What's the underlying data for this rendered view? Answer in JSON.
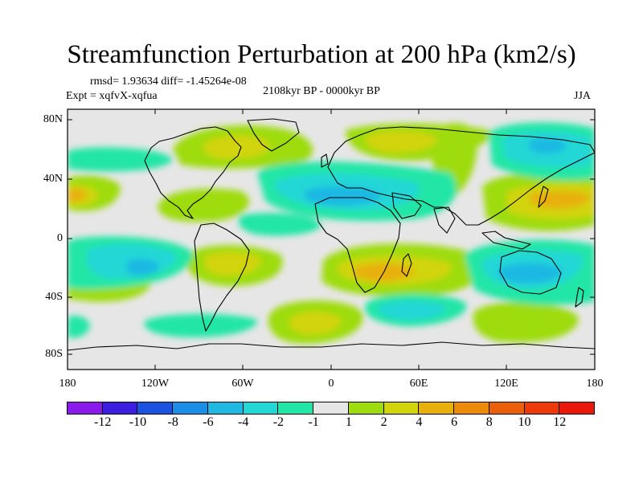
{
  "title": "Streamfunction Perturbation at 200 hPa (km2/s)",
  "stats": "rmsd= 1.93634 diff= -1.45264e-08",
  "expt": "Expt = xqfvX-xqfua",
  "period": "2108kyr BP - 0000kyr BP",
  "season": "JJA",
  "lat_labels": [
    "80N",
    "40N",
    "0",
    "40S",
    "80S"
  ],
  "lon_labels": [
    "180",
    "120W",
    "60W",
    "0",
    "60E",
    "120E",
    "180"
  ],
  "colorbar": {
    "labels": [
      "-12",
      "-10",
      "-8",
      "-6",
      "-4",
      "-2",
      "-1",
      "1",
      "2",
      "4",
      "6",
      "8",
      "10",
      "12"
    ],
    "colors": [
      "#8a1bea",
      "#3b1ee0",
      "#1b52e0",
      "#1c8ee6",
      "#1fb8e3",
      "#22d7d6",
      "#22e6a6",
      "#e6e6e6",
      "#9edc10",
      "#d2d40c",
      "#e8b00a",
      "#ec8a0a",
      "#ec5f0a",
      "#ec3a0a",
      "#e9180a"
    ]
  },
  "map_colors": {
    "ocean_bg": "#e6e6e6"
  }
}
